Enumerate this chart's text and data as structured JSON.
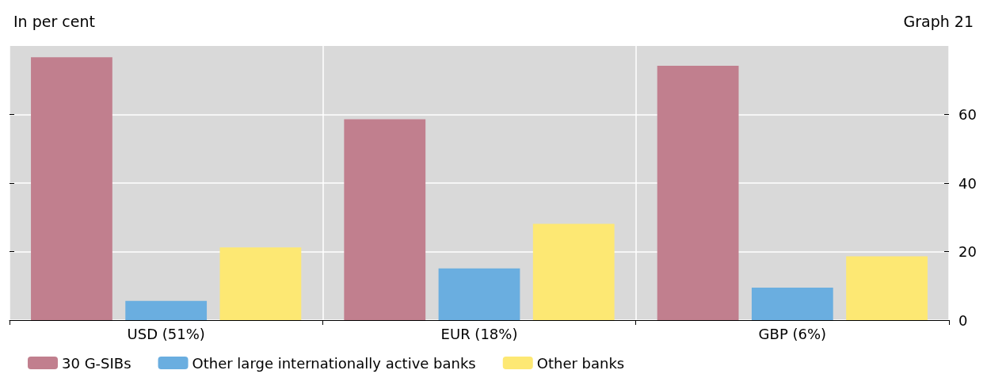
{
  "chart_data": {
    "type": "bar",
    "subtitle": "In per cent",
    "annotations": [
      "Graph 21"
    ],
    "categories": [
      "USD (51%)",
      "EUR (18%)",
      "GBP (6%)"
    ],
    "series": [
      {
        "name": "30 G-SIBs",
        "color": "#c17f8e",
        "values": [
          76.7,
          58.6,
          74.2
        ]
      },
      {
        "name": "Other large internationally active banks",
        "color": "#6aaee0",
        "values": [
          5.6,
          15.1,
          9.5
        ]
      },
      {
        "name": "Other banks",
        "color": "#fde873",
        "values": [
          21.2,
          28.1,
          18.6
        ]
      }
    ],
    "ylim": [
      0,
      80
    ],
    "yticks": [
      0,
      20,
      40,
      60
    ],
    "grid": true,
    "legend": "bottom left"
  }
}
